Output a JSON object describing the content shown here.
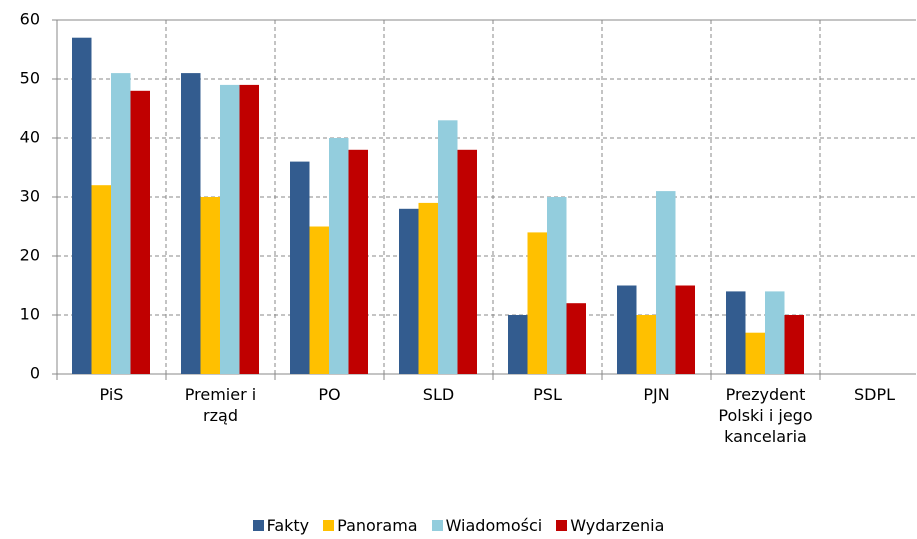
{
  "chart_data": {
    "type": "bar",
    "categories": [
      "PiS",
      "Premier i rząd",
      "PO",
      "SLD",
      "PSL",
      "PJN",
      "Prezydent Polski i jego kancelaria",
      "SDPL"
    ],
    "series": [
      {
        "name": "Fakty",
        "color": "#335c8f",
        "values": [
          57,
          51,
          36,
          28,
          10,
          15,
          14,
          0
        ]
      },
      {
        "name": "Panorama",
        "color": "#ffc000",
        "values": [
          32,
          30,
          25,
          29,
          24,
          10,
          7,
          0
        ]
      },
      {
        "name": "Wiadomości",
        "color": "#93cddd",
        "values": [
          51,
          49,
          40,
          43,
          30,
          31,
          14,
          0
        ]
      },
      {
        "name": "Wydarzenia",
        "color": "#c00000",
        "values": [
          48,
          49,
          38,
          38,
          12,
          15,
          10,
          0
        ]
      }
    ],
    "ylim": [
      0,
      60
    ],
    "yticks": [
      0,
      10,
      20,
      30,
      40,
      50,
      60
    ],
    "grid": true,
    "legend": "bottom"
  }
}
